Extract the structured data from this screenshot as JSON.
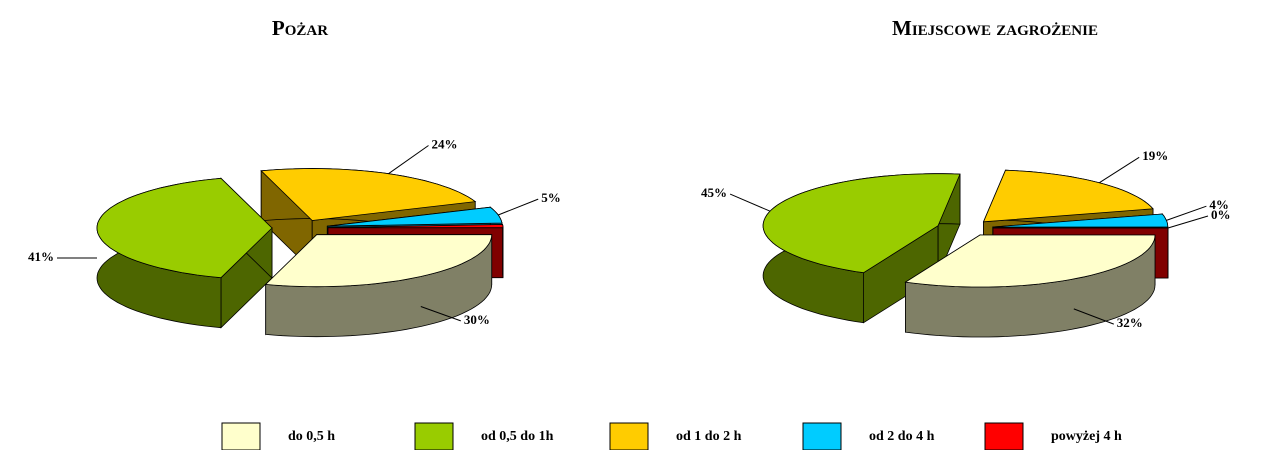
{
  "chart_data": [
    {
      "type": "pie3d",
      "title": "Pożar",
      "categories": [
        "do 0,5 h",
        "od 0,5 do 1h",
        "od 1 do 2 h",
        "od 2 do 4 h",
        "powyżej 4 h"
      ],
      "values": [
        30,
        41,
        24,
        5,
        1
      ],
      "value_labels": [
        "30%",
        "41%",
        "24%",
        "5%",
        null
      ],
      "colors": [
        "#ffffcc",
        "#99cc00",
        "#ffcc00",
        "#00ccff",
        "#ff0000"
      ],
      "legend": "bottom"
    },
    {
      "type": "pie3d",
      "title": "Miejscowe zagrożenie",
      "categories": [
        "do 0,5 h",
        "od 0,5 do 1h",
        "od 1 do 2 h",
        "od 2 do 4 h",
        "powyżej 4 h"
      ],
      "values": [
        32,
        45,
        19,
        4,
        0
      ],
      "value_labels": [
        "32%",
        "45%",
        "19%",
        "4%",
        "0%"
      ],
      "colors": [
        "#ffffcc",
        "#99cc00",
        "#ffcc00",
        "#00ccff",
        "#ff0000"
      ]
    }
  ]
}
